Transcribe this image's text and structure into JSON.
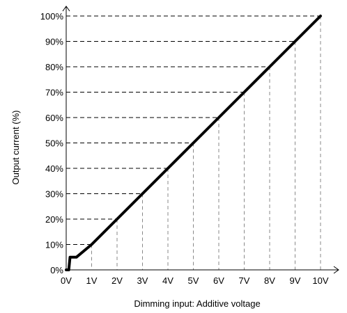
{
  "chart_data": {
    "type": "line",
    "xlabel": "Dimming input: Additive voltage",
    "ylabel": "Output current (%)",
    "x_ticks": [
      "0V",
      "1V",
      "2V",
      "3V",
      "4V",
      "5V",
      "6V",
      "7V",
      "8V",
      "9V",
      "10V"
    ],
    "y_ticks": [
      "0%",
      "10%",
      "20%",
      "30%",
      "40%",
      "50%",
      "60%",
      "70%",
      "80%",
      "90%",
      "100%"
    ],
    "xlim": [
      0,
      10
    ],
    "ylim": [
      0,
      100
    ],
    "grid": "dashed drop lines from curve to axes",
    "series": [
      {
        "x": [
          0,
          0.1,
          0.15,
          0.4,
          1,
          2,
          3,
          4,
          5,
          6,
          7,
          8,
          9,
          10
        ],
        "y": [
          0,
          0,
          5,
          5,
          10,
          20,
          30,
          40,
          50,
          60,
          70,
          80,
          90,
          100
        ]
      }
    ],
    "color": "#000000"
  }
}
